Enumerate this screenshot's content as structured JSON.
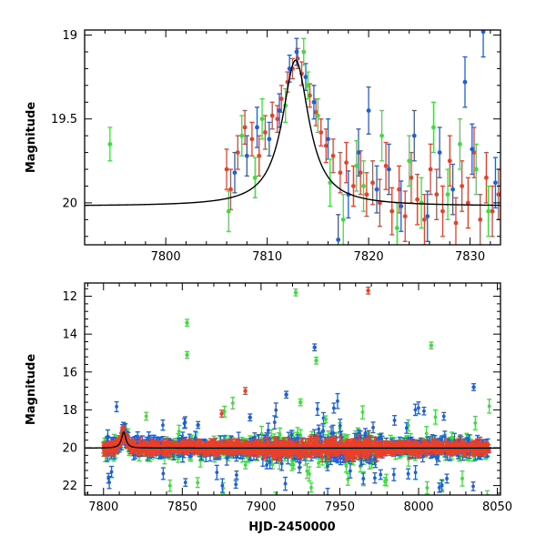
{
  "chart_data": [
    {
      "type": "scatter",
      "panel": "top",
      "title": "",
      "xlabel": "",
      "ylabel": "Magnitude",
      "xlim": [
        7792,
        7833
      ],
      "ylim": [
        20.25,
        18.97
      ],
      "y_inverted": true,
      "xticks": [
        7800,
        7810,
        7820,
        7830
      ],
      "yticks": [
        19,
        19.5,
        20
      ],
      "ytick_labels": [
        "19",
        "19.5",
        "20"
      ],
      "grid": false,
      "legend": "none",
      "series": [
        {
          "color": "#e8402a",
          "points": [
            [
              7806,
              19.8,
              0.12
            ],
            [
              7806.4,
              19.92,
              0.12
            ],
            [
              7807.1,
              19.7,
              0.1
            ],
            [
              7807.8,
              19.55,
              0.1
            ],
            [
              7808.5,
              19.62,
              0.1
            ],
            [
              7809.2,
              19.72,
              0.12
            ],
            [
              7809.8,
              19.58,
              0.1
            ],
            [
              7810.5,
              19.48,
              0.08
            ],
            [
              7811.0,
              19.5,
              0.08
            ],
            [
              7811.4,
              19.38,
              0.08
            ],
            [
              7812.0,
              19.28,
              0.06
            ],
            [
              7812.5,
              19.2,
              0.06
            ],
            [
              7813.0,
              19.14,
              0.06
            ],
            [
              7813.4,
              19.23,
              0.07
            ],
            [
              7814.2,
              19.36,
              0.07
            ],
            [
              7814.8,
              19.46,
              0.08
            ],
            [
              7815.3,
              19.58,
              0.08
            ],
            [
              7815.8,
              19.66,
              0.1
            ],
            [
              7816.5,
              19.72,
              0.1
            ],
            [
              7817.2,
              19.82,
              0.12
            ],
            [
              7817.8,
              19.76,
              0.12
            ],
            [
              7818.5,
              19.9,
              0.12
            ],
            [
              7819.2,
              19.82,
              0.13
            ],
            [
              7819.8,
              19.95,
              0.13
            ],
            [
              7820.4,
              19.88,
              0.13
            ],
            [
              7821.1,
              20.0,
              0.14
            ],
            [
              7821.7,
              19.78,
              0.14
            ],
            [
              7822.3,
              20.05,
              0.14
            ],
            [
              7823.0,
              19.92,
              0.14
            ],
            [
              7823.6,
              20.08,
              0.15
            ],
            [
              7824.2,
              19.85,
              0.15
            ],
            [
              7824.8,
              19.98,
              0.15
            ],
            [
              7825.5,
              20.1,
              0.15
            ],
            [
              7826.1,
              19.8,
              0.15
            ],
            [
              7826.7,
              19.95,
              0.15
            ],
            [
              7827.3,
              20.05,
              0.15
            ],
            [
              7828.0,
              19.75,
              0.15
            ],
            [
              7828.6,
              20.12,
              0.15
            ],
            [
              7829.2,
              19.9,
              0.15
            ],
            [
              7829.8,
              20.0,
              0.15
            ],
            [
              7830.4,
              19.7,
              0.15
            ],
            [
              7831.0,
              20.1,
              0.15
            ],
            [
              7831.6,
              19.85,
              0.15
            ],
            [
              7832.2,
              20.05,
              0.15
            ],
            [
              7832.8,
              19.95,
              0.15
            ]
          ]
        },
        {
          "color": "#1f5fd8",
          "points": [
            [
              7806.8,
              19.82,
              0.12
            ],
            [
              7808.0,
              19.72,
              0.12
            ],
            [
              7809.0,
              19.55,
              0.12
            ],
            [
              7810.2,
              19.62,
              0.1
            ],
            [
              7811.2,
              19.45,
              0.1
            ],
            [
              7812.2,
              19.2,
              0.08
            ],
            [
              7812.9,
              19.1,
              0.08
            ],
            [
              7813.8,
              19.25,
              0.08
            ],
            [
              7814.6,
              19.4,
              0.1
            ],
            [
              7816.0,
              19.62,
              0.12
            ],
            [
              7817.0,
              20.22,
              0.15
            ],
            [
              7818.0,
              19.95,
              0.14
            ],
            [
              7819.0,
              19.7,
              0.14
            ],
            [
              7820.0,
              19.45,
              0.14
            ],
            [
              7820.8,
              19.92,
              0.14
            ],
            [
              7822.0,
              19.8,
              0.15
            ],
            [
              7823.2,
              20.02,
              0.15
            ],
            [
              7824.5,
              19.6,
              0.15
            ],
            [
              7825.8,
              20.08,
              0.15
            ],
            [
              7827.0,
              19.7,
              0.15
            ],
            [
              7828.3,
              19.92,
              0.15
            ],
            [
              7829.5,
              19.28,
              0.15
            ],
            [
              7830.2,
              19.68,
              0.15
            ],
            [
              7831.3,
              18.98,
              0.15
            ],
            [
              7832.5,
              19.88,
              0.15
            ]
          ]
        },
        {
          "color": "#3ddd3d",
          "points": [
            [
              7794.5,
              19.65,
              0.1
            ],
            [
              7806.2,
              20.05,
              0.12
            ],
            [
              7807.5,
              19.6,
              0.12
            ],
            [
              7808.8,
              19.85,
              0.12
            ],
            [
              7809.5,
              19.5,
              0.12
            ],
            [
              7811.8,
              19.42,
              0.1
            ],
            [
              7813.6,
              19.1,
              0.08
            ],
            [
              7814.0,
              19.3,
              0.08
            ],
            [
              7815.0,
              19.48,
              0.1
            ],
            [
              7816.2,
              19.88,
              0.14
            ],
            [
              7817.5,
              20.1,
              0.15
            ],
            [
              7818.8,
              19.78,
              0.15
            ],
            [
              7819.5,
              19.9,
              0.15
            ],
            [
              7821.3,
              19.6,
              0.15
            ],
            [
              7822.8,
              20.15,
              0.15
            ],
            [
              7824.0,
              19.75,
              0.15
            ],
            [
              7825.2,
              20.0,
              0.15
            ],
            [
              7826.4,
              19.55,
              0.15
            ],
            [
              7827.8,
              19.95,
              0.15
            ],
            [
              7829.0,
              19.65,
              0.15
            ],
            [
              7830.6,
              19.8,
              0.15
            ],
            [
              7831.8,
              20.05,
              0.15
            ]
          ]
        }
      ],
      "model_curve": {
        "color": "#000000",
        "baseline": 20.02,
        "peak_time": 7812.8,
        "peak_mag": 19.15,
        "width_days": 1.6
      }
    },
    {
      "type": "scatter",
      "panel": "bottom",
      "title": "",
      "xlabel": "HJD-2450000",
      "ylabel": "Magnitude",
      "xlim": [
        7788,
        8052
      ],
      "ylim": [
        22.5,
        11.3
      ],
      "y_inverted": true,
      "xticks": [
        7800,
        7850,
        7900,
        7950,
        8000,
        8050
      ],
      "yticks": [
        12,
        14,
        16,
        18,
        20,
        22
      ],
      "grid": false,
      "legend": "none",
      "outliers": [
        {
          "color": "#3ddd3d",
          "x": 7853,
          "y": 13.4
        },
        {
          "color": "#3ddd3d",
          "x": 7853,
          "y": 15.1
        },
        {
          "color": "#3ddd3d",
          "x": 7922,
          "y": 11.8
        },
        {
          "color": "#3ddd3d",
          "x": 7935,
          "y": 15.4
        },
        {
          "color": "#3ddd3d",
          "x": 8008,
          "y": 14.6
        },
        {
          "color": "#3ddd3d",
          "x": 7925,
          "y": 17.6
        },
        {
          "color": "#3ddd3d",
          "x": 7941,
          "y": 18.5
        },
        {
          "color": "#e8402a",
          "x": 7968,
          "y": 11.7
        },
        {
          "color": "#e8402a",
          "x": 7890,
          "y": 17.0
        },
        {
          "color": "#e8402a",
          "x": 7875,
          "y": 18.2
        },
        {
          "color": "#1f5fd8",
          "x": 7934,
          "y": 14.7
        },
        {
          "color": "#1f5fd8",
          "x": 8035,
          "y": 16.8
        },
        {
          "color": "#1f5fd8",
          "x": 7916,
          "y": 17.2
        },
        {
          "color": "#1f5fd8",
          "x": 7860,
          "y": 18.8
        },
        {
          "color": "#1f5fd8",
          "x": 7893,
          "y": 18.4
        }
      ],
      "bulk": {
        "x_range": [
          7800,
          8045
        ],
        "baseline": 20.0,
        "peak_time": 7812.8,
        "peak_mag": 19.15
      },
      "model_curve": {
        "color": "#000000",
        "baseline": 20.02,
        "peak_time": 7812.8,
        "peak_mag": 19.15,
        "width_days": 1.6
      }
    }
  ]
}
